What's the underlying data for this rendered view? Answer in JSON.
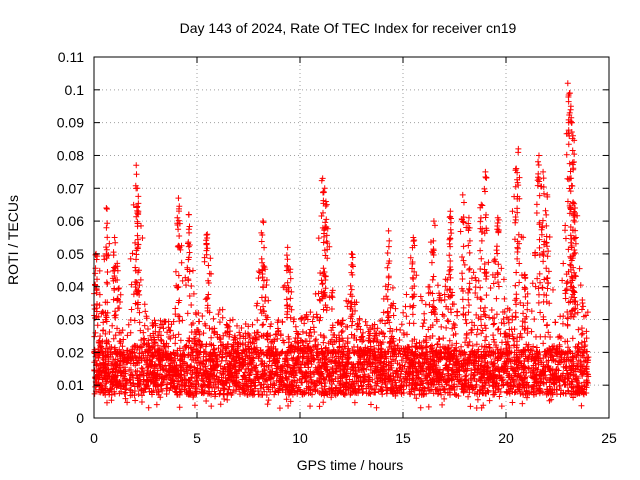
{
  "chart_data": {
    "type": "scatter",
    "title": "Day 143 of 2024, Rate Of TEC Index for receiver cn19",
    "xlabel": "GPS time / hours",
    "ylabel": "ROTI / TECUs",
    "xlim": [
      0,
      25
    ],
    "ylim": [
      0,
      0.11
    ],
    "x_ticks": [
      0,
      5,
      10,
      15,
      20,
      25
    ],
    "x_tick_labels": [
      "0",
      "5",
      "10",
      "15",
      "20",
      "25"
    ],
    "y_ticks": [
      0,
      0.01,
      0.02,
      0.03,
      0.04,
      0.05,
      0.06,
      0.07,
      0.08,
      0.09,
      0.1,
      0.11
    ],
    "y_tick_labels": [
      "0",
      "0.01",
      "0.02",
      "0.03",
      "0.04",
      "0.05",
      "0.06",
      "0.07",
      "0.08",
      "0.09",
      "0.1",
      "0.11"
    ],
    "grid": true,
    "marker": "+",
    "marker_color": "#ff0000",
    "series": [
      {
        "name": "cn19",
        "x_range_hours": [
          0,
          24
        ],
        "baseline_band": [
          0.007,
          0.02
        ],
        "peaks": [
          {
            "x": 0.1,
            "y": 0.05
          },
          {
            "x": 0.6,
            "y": 0.064
          },
          {
            "x": 1.0,
            "y": 0.055
          },
          {
            "x": 2.05,
            "y": 0.077
          },
          {
            "x": 2.1,
            "y": 0.07
          },
          {
            "x": 2.15,
            "y": 0.063
          },
          {
            "x": 4.1,
            "y": 0.067
          },
          {
            "x": 4.6,
            "y": 0.062
          },
          {
            "x": 5.5,
            "y": 0.056
          },
          {
            "x": 8.2,
            "y": 0.06
          },
          {
            "x": 9.4,
            "y": 0.052
          },
          {
            "x": 11.1,
            "y": 0.073
          },
          {
            "x": 11.2,
            "y": 0.07
          },
          {
            "x": 11.3,
            "y": 0.065
          },
          {
            "x": 12.5,
            "y": 0.05
          },
          {
            "x": 14.3,
            "y": 0.057
          },
          {
            "x": 15.5,
            "y": 0.055
          },
          {
            "x": 16.5,
            "y": 0.06
          },
          {
            "x": 17.3,
            "y": 0.063
          },
          {
            "x": 17.9,
            "y": 0.068
          },
          {
            "x": 18.2,
            "y": 0.061
          },
          {
            "x": 18.8,
            "y": 0.065
          },
          {
            "x": 19.0,
            "y": 0.075
          },
          {
            "x": 19.6,
            "y": 0.061
          },
          {
            "x": 20.5,
            "y": 0.076
          },
          {
            "x": 20.6,
            "y": 0.082
          },
          {
            "x": 21.6,
            "y": 0.08
          },
          {
            "x": 21.8,
            "y": 0.075
          },
          {
            "x": 22.0,
            "y": 0.068
          },
          {
            "x": 23.0,
            "y": 0.102
          },
          {
            "x": 23.1,
            "y": 0.099
          },
          {
            "x": 23.15,
            "y": 0.095
          },
          {
            "x": 23.2,
            "y": 0.09
          },
          {
            "x": 23.25,
            "y": 0.086
          },
          {
            "x": 23.3,
            "y": 0.078
          },
          {
            "x": 23.35,
            "y": 0.064
          }
        ]
      }
    ]
  }
}
